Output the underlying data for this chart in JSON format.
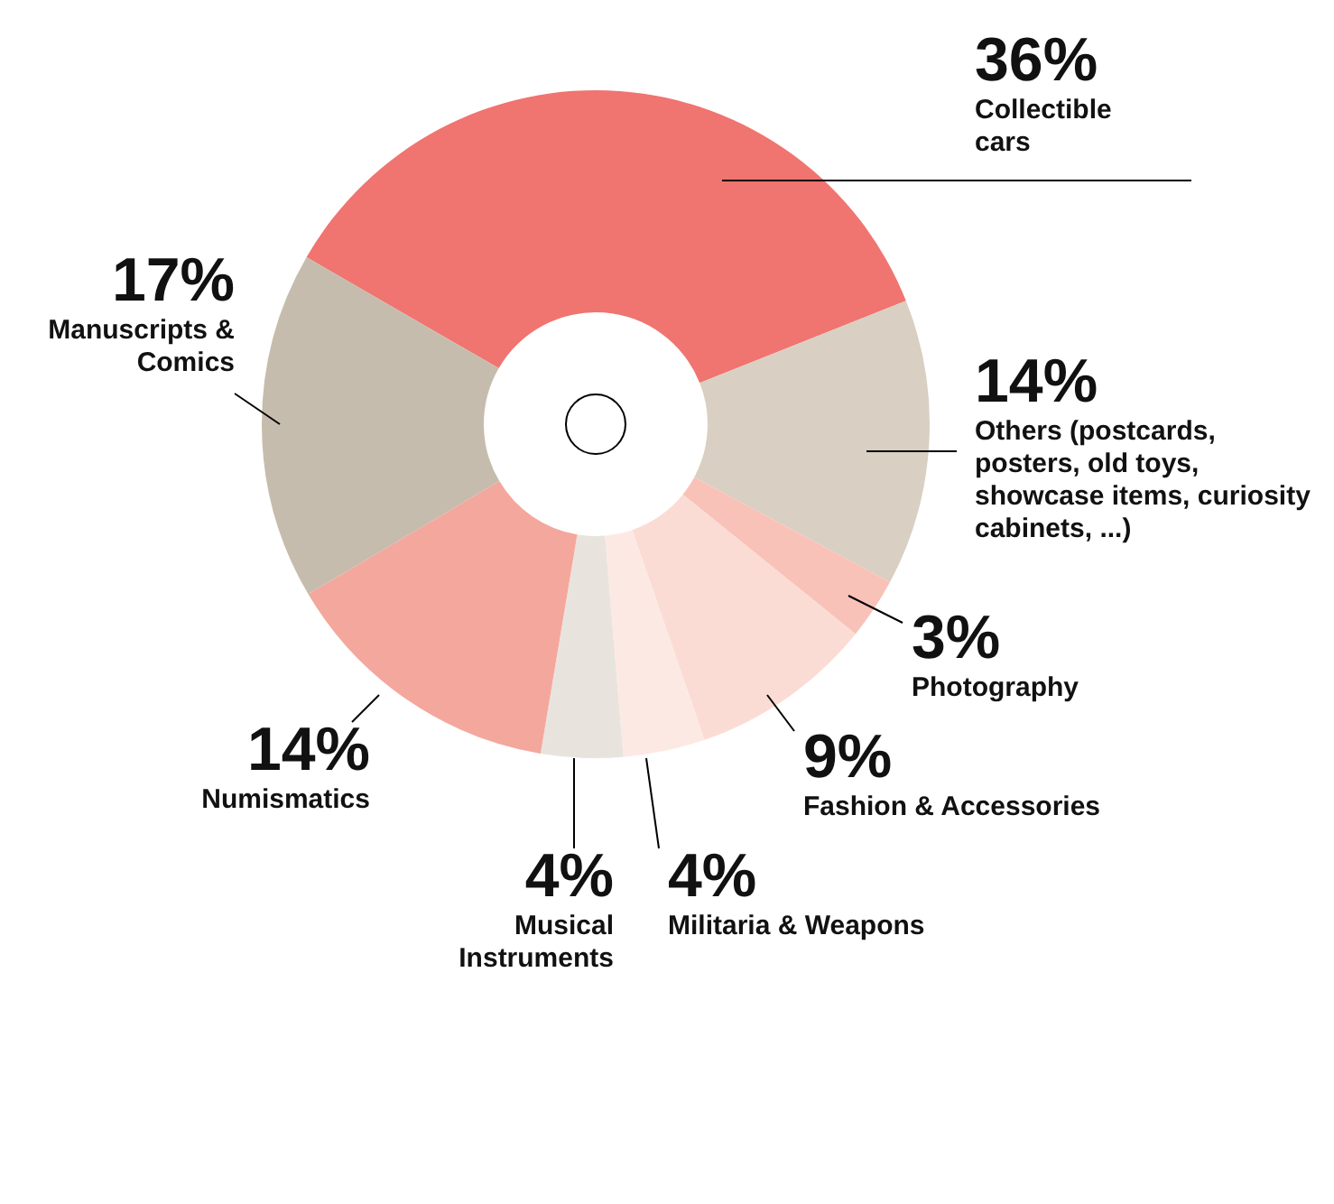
{
  "chart_data": {
    "type": "donut",
    "categories": [
      "Collectible cars",
      "Others (postcards, posters, old toys, showcase items, curiosity cabinets, ...)",
      "Photography",
      "Fashion & Accessories",
      "Militaria & Weapons",
      "Musical Instruments",
      "Numismatics",
      "Manuscripts & Comics"
    ],
    "values": [
      36,
      14,
      3,
      9,
      4,
      4,
      14,
      17
    ],
    "colors": [
      "#f07470",
      "#d9cfc2",
      "#f9c2b8",
      "#fbdcd4",
      "#fde9e4",
      "#e8e4dd",
      "#f4a79c",
      "#c6bcad"
    ],
    "value_labels": [
      "36%",
      "14%",
      "3%",
      "9%",
      "4%",
      "4%",
      "14%",
      "17%"
    ]
  }
}
